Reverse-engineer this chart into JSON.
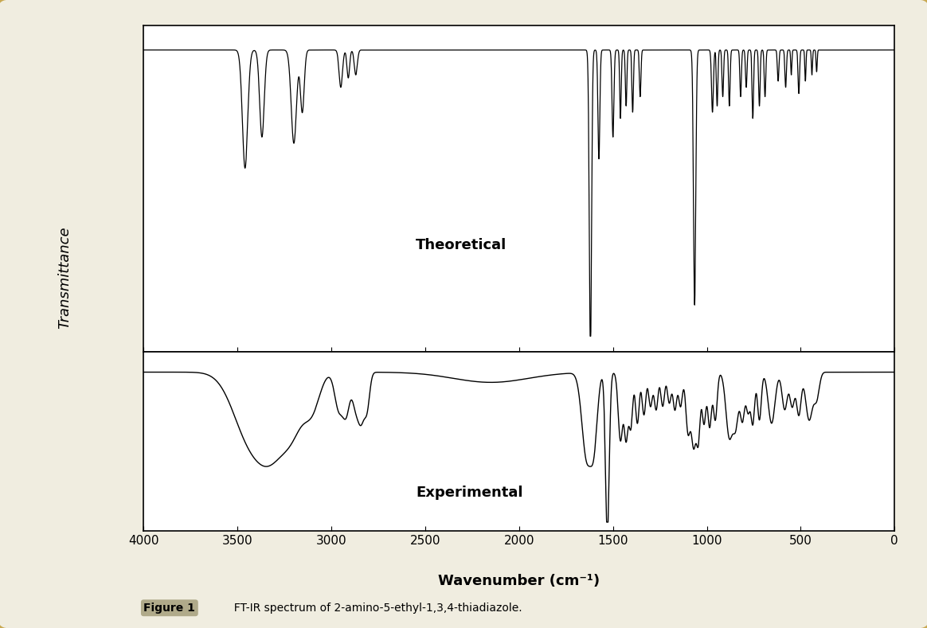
{
  "title": "FT-IR spectrum of 2-amino-5-ethyl-1,3,4-thiadiazole.",
  "figure_label": "Figure 1",
  "xlabel": "Wavenumber (cm⁻¹)",
  "ylabel": "Transmittance",
  "x_min": 0,
  "x_max": 4000,
  "theoretical_label": "Theoretical",
  "experimental_label": "Experimental",
  "background_color": "#f0ede0",
  "plot_bg": "#ffffff",
  "border_color": "#c8a850"
}
